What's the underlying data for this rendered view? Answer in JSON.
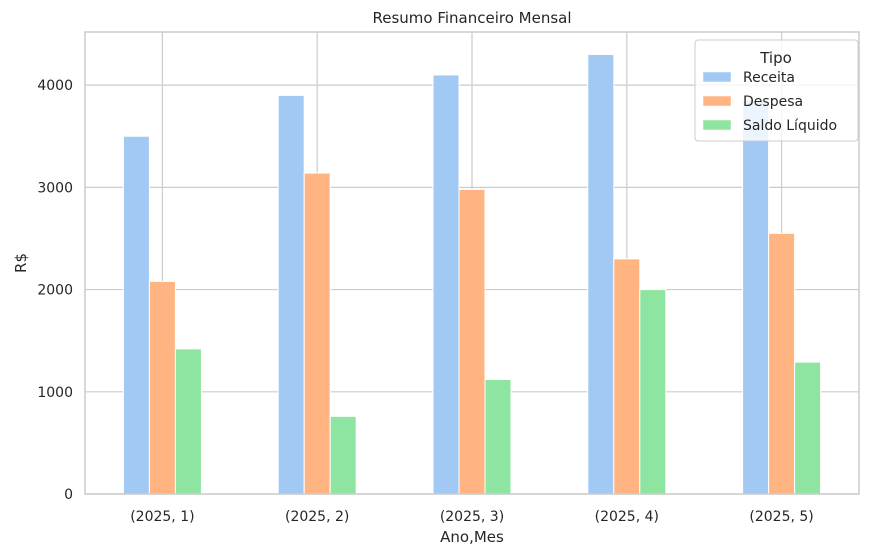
{
  "chart_data": {
    "type": "bar",
    "title": "Resumo Financeiro Mensal",
    "xlabel": "Ano,Mes",
    "ylabel": "R$",
    "categories": [
      "(2025, 1)",
      "(2025, 2)",
      "(2025, 3)",
      "(2025, 4)",
      "(2025, 5)"
    ],
    "series": [
      {
        "name": "Receita",
        "values": [
          3500,
          3900,
          4100,
          4300,
          3850
        ],
        "color": "#a1c9f4"
      },
      {
        "name": "Despesa",
        "values": [
          2080,
          3140,
          2980,
          2300,
          2550
        ],
        "color": "#ffb482"
      },
      {
        "name": "Saldo Líquido",
        "values": [
          1420,
          760,
          1120,
          2000,
          1290
        ],
        "color": "#8de5a1"
      }
    ],
    "ylim": [
      0,
      4520
    ],
    "yticks": [
      0,
      1000,
      2000,
      3000,
      4000
    ],
    "grid": true,
    "legend": {
      "title": "Tipo",
      "placement": "top-right"
    }
  }
}
